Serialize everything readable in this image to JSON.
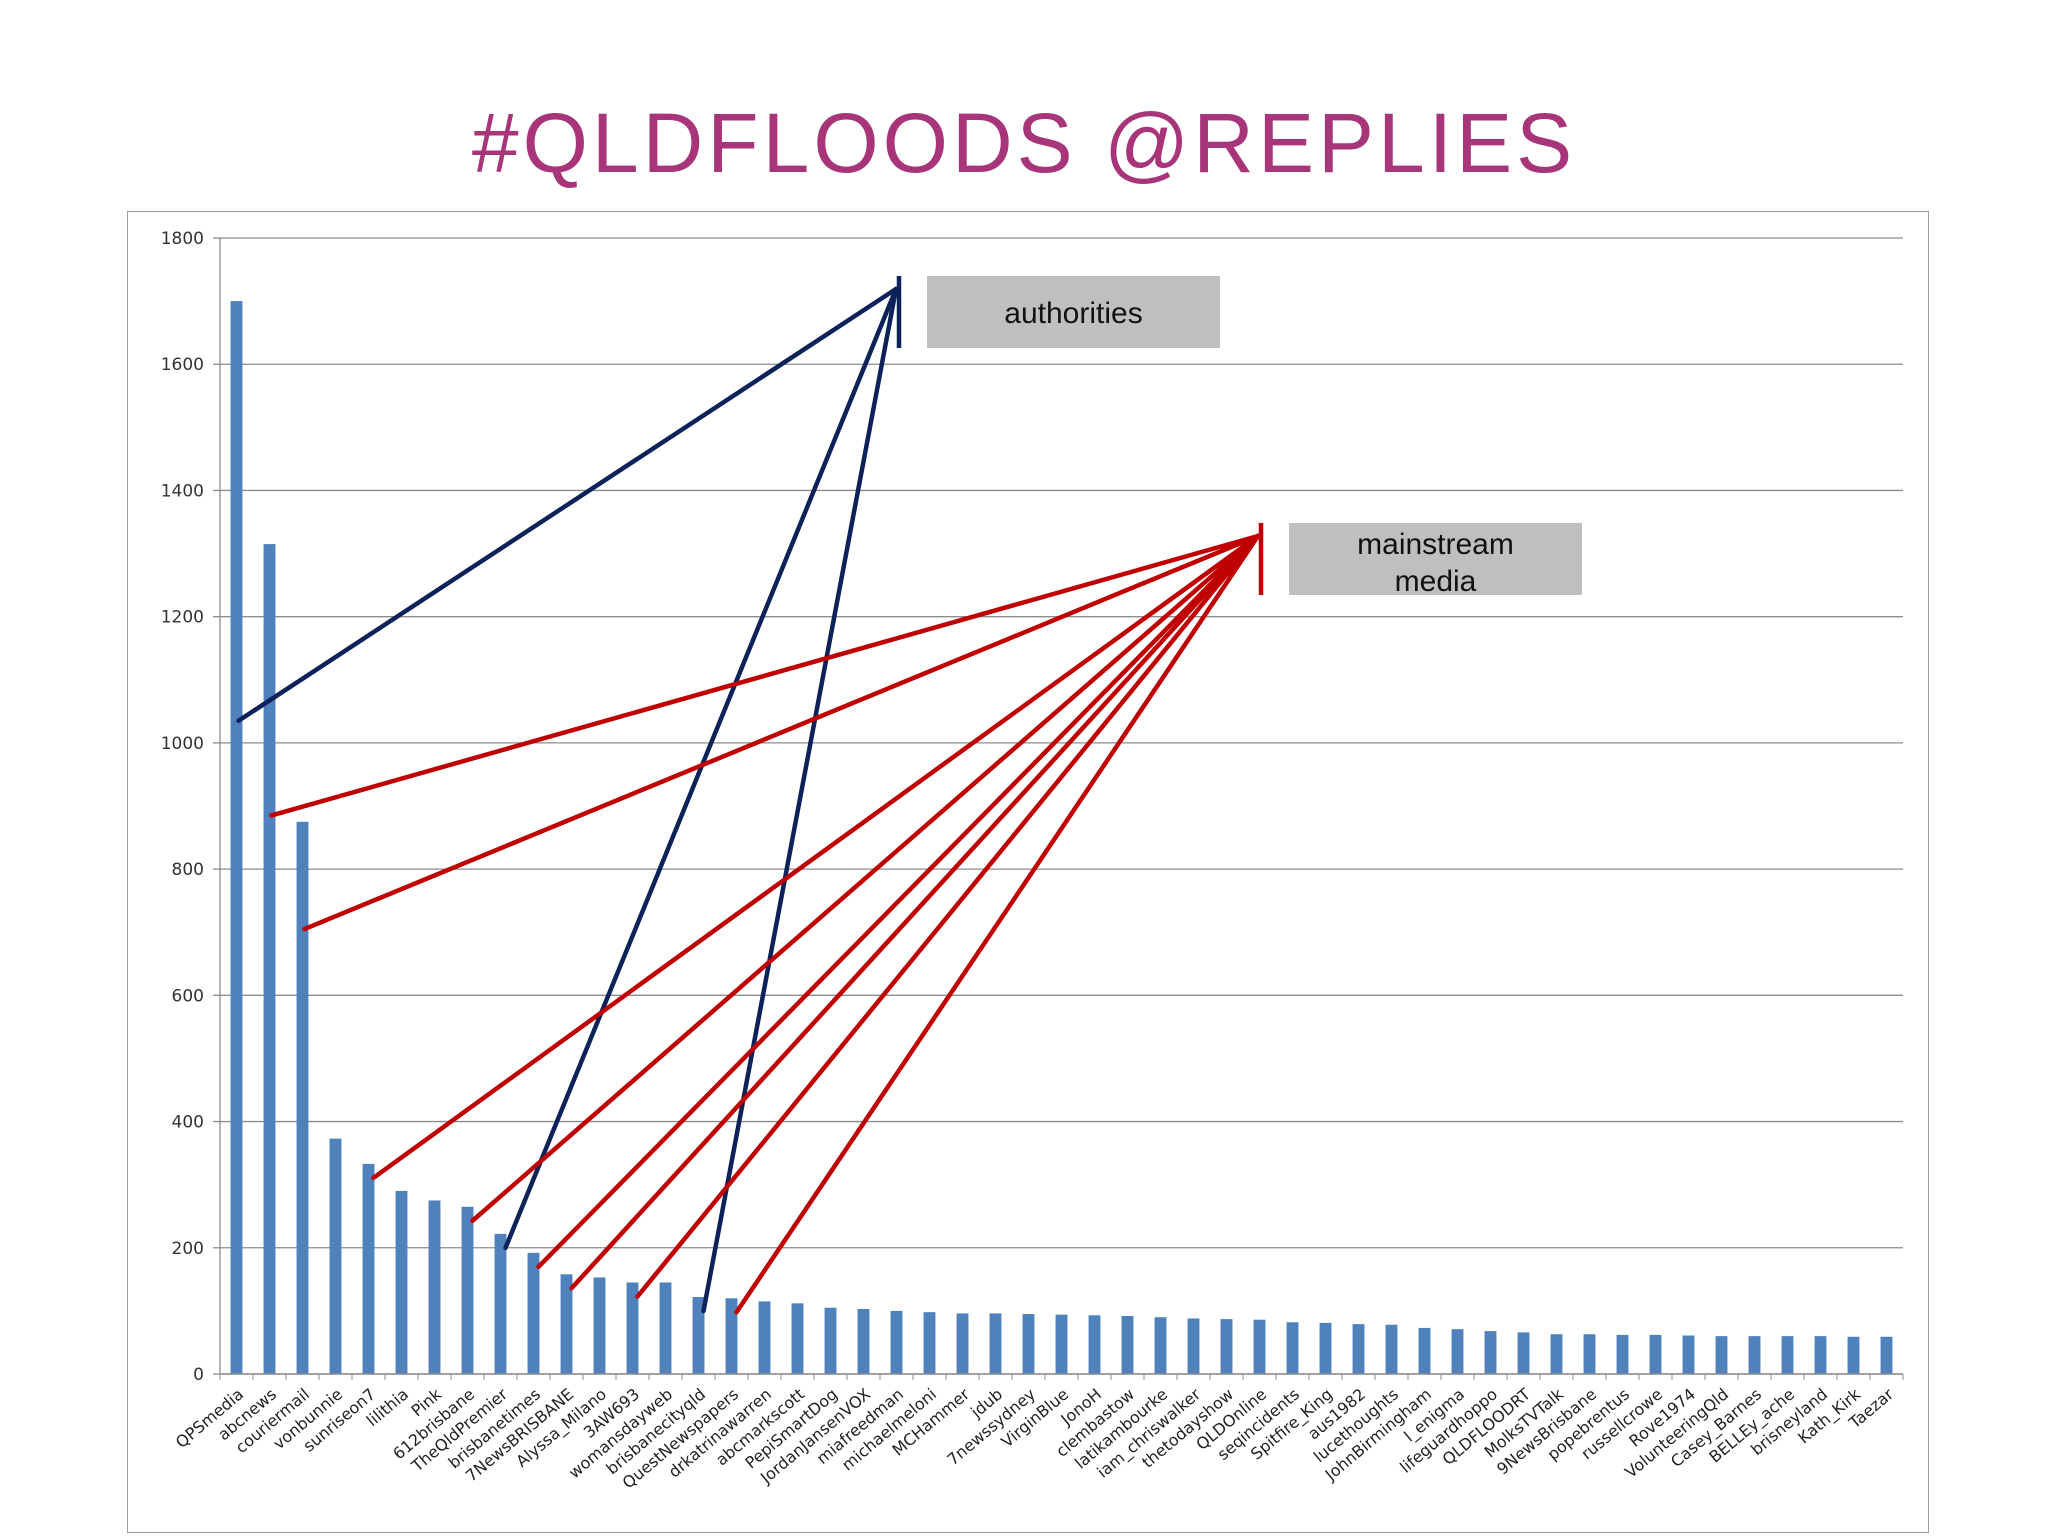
{
  "slide": {
    "title": "#QLDFLOODS @REPLIES"
  },
  "colors": {
    "title": "#a8357a",
    "bar": "#4f81bd",
    "authorities_line": "#0d2259",
    "media_line": "#c00000",
    "callout_fill": "#c0bfc0"
  },
  "chart_data": {
    "type": "bar",
    "title": "",
    "xlabel": "",
    "ylabel": "",
    "ylim": [
      0,
      1800
    ],
    "yticks": [
      0,
      200,
      400,
      600,
      800,
      1000,
      1200,
      1400,
      1600,
      1800
    ],
    "grid": true,
    "legend": "none",
    "categories": [
      "QPSmedia",
      "abcnews",
      "couriermail",
      "vonbunnie",
      "sunriseon7",
      "lilithia",
      "Pink",
      "612brisbane",
      "TheQldPremier",
      "brisbanetimes",
      "7NewsBRISBANE",
      "Alyssa_Milano",
      "3AW693",
      "womansdayweb",
      "brisbanecityqld",
      "QuestNewspapers",
      "drkatrinawarren",
      "abcmarkscott",
      "PepiSmartDog",
      "JordanJansenVOX",
      "miafreedman",
      "michaelmeloni",
      "MCHammer",
      "jdub",
      "7newssydney",
      "VirginBlue",
      "JonoH",
      "clembastow",
      "latikambourke",
      "iam_chriswalker",
      "thetodayshow",
      "QLDOnline",
      "seqincidents",
      "Spitfire_King",
      "aus1982",
      "lucethoughts",
      "JohnBirmingham",
      "l_enigma",
      "lifeguardhoppo",
      "QLDFLOODRT",
      "MolksTVTalk",
      "9NewsBrisbane",
      "popebrentus",
      "russellcrowe",
      "Rove1974",
      "VolunteeringQld",
      "Casey_Barnes",
      "BELLEy_ache",
      "brisneyland",
      "Kath_Kirk",
      "Taezar"
    ],
    "values": [
      1700,
      1315,
      875,
      373,
      333,
      290,
      275,
      265,
      222,
      192,
      158,
      153,
      145,
      145,
      122,
      120,
      115,
      112,
      105,
      103,
      100,
      98,
      96,
      96,
      95,
      94,
      93,
      92,
      90,
      88,
      87,
      86,
      82,
      81,
      79,
      78,
      73,
      71,
      68,
      66,
      63,
      63,
      62,
      62,
      61,
      60,
      60,
      60,
      60,
      59,
      59
    ],
    "annotations": [
      {
        "label": "authorities",
        "color": "authorities_line",
        "points_to": [
          "QPSmedia",
          "TheQldPremier",
          "brisbanecityqld"
        ]
      },
      {
        "label": "mainstream media",
        "color": "media_line",
        "points_to": [
          "abcnews",
          "couriermail",
          "sunriseon7",
          "612brisbane",
          "brisbanetimes",
          "7NewsBRISBANE",
          "3AW693",
          "QuestNewspapers"
        ]
      }
    ]
  }
}
